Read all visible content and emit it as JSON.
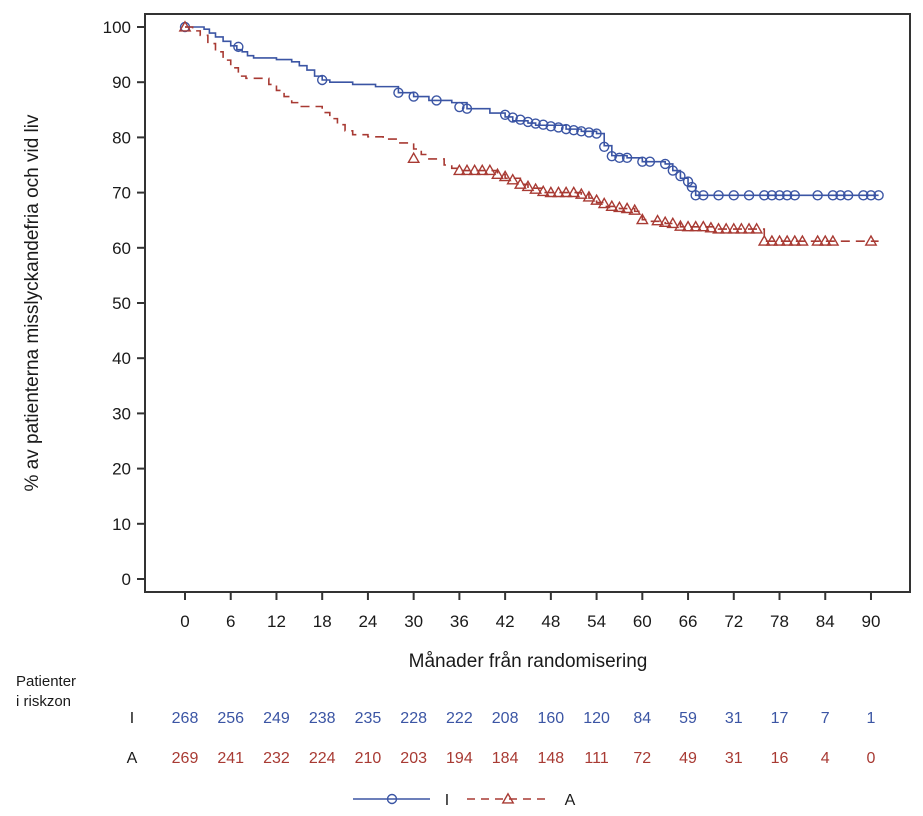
{
  "chart_data": {
    "type": "line",
    "subtype": "kaplan-meier step",
    "title": "",
    "xlabel": "Månader från randomisering",
    "ylabel": "% av patienterna misslyckandefria och vid liv",
    "xlim": [
      -6,
      96
    ],
    "ylim": [
      -2,
      102
    ],
    "x_ticks": [
      0,
      6,
      12,
      18,
      24,
      30,
      36,
      42,
      48,
      54,
      60,
      66,
      72,
      78,
      84,
      90
    ],
    "y_ticks": [
      0,
      10,
      20,
      30,
      40,
      50,
      60,
      70,
      80,
      90,
      100
    ],
    "grid": false,
    "legend_position": "bottom",
    "series": [
      {
        "name": "I",
        "color": "#3b55a4",
        "line_style": "solid",
        "marker": "circle",
        "steps": [
          [
            0,
            100
          ],
          [
            2.5,
            99.6
          ],
          [
            3.2,
            98.9
          ],
          [
            4,
            98.2
          ],
          [
            5,
            97.4
          ],
          [
            6,
            96.6
          ],
          [
            6.8,
            95.9
          ],
          [
            7.5,
            95.5
          ],
          [
            8.2,
            94.8
          ],
          [
            9,
            94.4
          ],
          [
            10.5,
            94.4
          ],
          [
            12,
            94.1
          ],
          [
            14,
            93.7
          ],
          [
            15,
            93.0
          ],
          [
            16,
            92.2
          ],
          [
            17,
            91.1
          ],
          [
            18,
            90.4
          ],
          [
            19,
            90.0
          ],
          [
            22,
            89.6
          ],
          [
            25,
            89.2
          ],
          [
            28,
            88.1
          ],
          [
            30,
            87.4
          ],
          [
            32,
            86.7
          ],
          [
            35,
            86.3
          ],
          [
            37,
            85.2
          ],
          [
            40,
            84.4
          ],
          [
            42,
            83.7
          ],
          [
            43,
            83.0
          ],
          [
            45,
            82.6
          ],
          [
            46,
            82.2
          ],
          [
            50,
            81.5
          ],
          [
            52,
            81.1
          ],
          [
            54,
            80.7
          ],
          [
            55,
            78.5
          ],
          [
            56,
            76.7
          ],
          [
            58,
            76.3
          ],
          [
            60,
            75.6
          ],
          [
            63,
            75.2
          ],
          [
            64,
            74.0
          ],
          [
            65,
            72.6
          ],
          [
            66,
            71.1
          ],
          [
            67,
            69.5
          ],
          [
            91,
            69.5
          ]
        ],
        "censored": [
          [
            0,
            100
          ],
          [
            7,
            96.4
          ],
          [
            18,
            90.4
          ],
          [
            28,
            88.1
          ],
          [
            30,
            87.4
          ],
          [
            33,
            86.7
          ],
          [
            36,
            85.5
          ],
          [
            37,
            85.2
          ],
          [
            42,
            84.1
          ],
          [
            43,
            83.6
          ],
          [
            44,
            83.2
          ],
          [
            45,
            82.8
          ],
          [
            46,
            82.5
          ],
          [
            47,
            82.3
          ],
          [
            48,
            82.0
          ],
          [
            49,
            81.8
          ],
          [
            50,
            81.5
          ],
          [
            51,
            81.3
          ],
          [
            52,
            81.1
          ],
          [
            53,
            80.9
          ],
          [
            54,
            80.7
          ],
          [
            55,
            78.3
          ],
          [
            56,
            76.6
          ],
          [
            57,
            76.3
          ],
          [
            58,
            76.3
          ],
          [
            60,
            75.6
          ],
          [
            61,
            75.6
          ],
          [
            63,
            75.2
          ],
          [
            64,
            74.0
          ],
          [
            65,
            73.0
          ],
          [
            66,
            72.0
          ],
          [
            66.5,
            71.0
          ],
          [
            67,
            69.5
          ],
          [
            68,
            69.5
          ],
          [
            70,
            69.5
          ],
          [
            72,
            69.5
          ],
          [
            74,
            69.5
          ],
          [
            76,
            69.5
          ],
          [
            77,
            69.5
          ],
          [
            78,
            69.5
          ],
          [
            79,
            69.5
          ],
          [
            80,
            69.5
          ],
          [
            83,
            69.5
          ],
          [
            85,
            69.5
          ],
          [
            86,
            69.5
          ],
          [
            87,
            69.5
          ],
          [
            89,
            69.5
          ],
          [
            90,
            69.5
          ],
          [
            91,
            69.5
          ]
        ]
      },
      {
        "name": "A",
        "color": "#a83a33",
        "line_style": "dashed",
        "marker": "triangle",
        "steps": [
          [
            0,
            100
          ],
          [
            1,
            99.3
          ],
          [
            2,
            98.5
          ],
          [
            3,
            97.0
          ],
          [
            4,
            95.5
          ],
          [
            5,
            94.0
          ],
          [
            6,
            92.6
          ],
          [
            7,
            91.1
          ],
          [
            8,
            90.7
          ],
          [
            10,
            90.7
          ],
          [
            11,
            89.6
          ],
          [
            12,
            88.5
          ],
          [
            13,
            87.4
          ],
          [
            14,
            86.3
          ],
          [
            15,
            85.6
          ],
          [
            17,
            85.6
          ],
          [
            18,
            84.5
          ],
          [
            19,
            83.4
          ],
          [
            20,
            82.3
          ],
          [
            21,
            81.2
          ],
          [
            22,
            80.5
          ],
          [
            24,
            80.1
          ],
          [
            26,
            79.7
          ],
          [
            28,
            79.0
          ],
          [
            30,
            77.9
          ],
          [
            31,
            76.9
          ],
          [
            32,
            76.1
          ],
          [
            34,
            75.0
          ],
          [
            35,
            74.4
          ],
          [
            36,
            74.0
          ],
          [
            40,
            74.0
          ],
          [
            41,
            73.3
          ],
          [
            42,
            72.6
          ],
          [
            44,
            71.5
          ],
          [
            45,
            70.8
          ],
          [
            47,
            70.0
          ],
          [
            52,
            69.7
          ],
          [
            53,
            69.0
          ],
          [
            54,
            68.2
          ],
          [
            55,
            67.5
          ],
          [
            57,
            67.1
          ],
          [
            59,
            66.6
          ],
          [
            60,
            65.1
          ],
          [
            61,
            64.8
          ],
          [
            63,
            64.4
          ],
          [
            65,
            63.8
          ],
          [
            67,
            63.8
          ],
          [
            70,
            63.4
          ],
          [
            75,
            63.4
          ],
          [
            76,
            61.2
          ],
          [
            91,
            61.2
          ]
        ],
        "censored": [
          [
            0,
            100
          ],
          [
            30,
            76.2
          ],
          [
            36,
            74.0
          ],
          [
            37,
            74.0
          ],
          [
            38,
            74.0
          ],
          [
            39,
            74.0
          ],
          [
            40,
            74.0
          ],
          [
            41,
            73.3
          ],
          [
            42,
            72.9
          ],
          [
            43,
            72.3
          ],
          [
            44,
            71.5
          ],
          [
            45,
            71.1
          ],
          [
            46,
            70.6
          ],
          [
            47,
            70.2
          ],
          [
            48,
            70.0
          ],
          [
            49,
            70.0
          ],
          [
            50,
            70.0
          ],
          [
            51,
            70.0
          ],
          [
            52,
            69.7
          ],
          [
            53,
            69.2
          ],
          [
            54,
            68.6
          ],
          [
            55,
            68.0
          ],
          [
            56,
            67.5
          ],
          [
            57,
            67.3
          ],
          [
            58,
            67.1
          ],
          [
            59,
            66.8
          ],
          [
            60,
            65.1
          ],
          [
            62,
            64.9
          ],
          [
            63,
            64.6
          ],
          [
            64,
            64.4
          ],
          [
            65,
            63.9
          ],
          [
            66,
            63.8
          ],
          [
            67,
            63.8
          ],
          [
            68,
            63.8
          ],
          [
            69,
            63.6
          ],
          [
            70,
            63.4
          ],
          [
            71,
            63.4
          ],
          [
            72,
            63.4
          ],
          [
            73,
            63.4
          ],
          [
            74,
            63.4
          ],
          [
            75,
            63.4
          ],
          [
            76,
            61.2
          ],
          [
            77,
            61.2
          ],
          [
            78,
            61.2
          ],
          [
            79,
            61.2
          ],
          [
            80,
            61.2
          ],
          [
            81,
            61.2
          ],
          [
            83,
            61.2
          ],
          [
            84,
            61.2
          ],
          [
            85,
            61.2
          ],
          [
            90,
            61.2
          ]
        ]
      }
    ],
    "risk_table": {
      "header": [
        "Patienter",
        "i riskzon"
      ],
      "rows": [
        {
          "group": "I",
          "color": "#3b55a4",
          "values": [
            268,
            256,
            249,
            238,
            235,
            228,
            222,
            208,
            160,
            120,
            84,
            59,
            31,
            17,
            7,
            1
          ]
        },
        {
          "group": "A",
          "color": "#a83a33",
          "values": [
            269,
            241,
            232,
            224,
            210,
            203,
            194,
            184,
            148,
            111,
            72,
            49,
            31,
            16,
            4,
            0
          ]
        }
      ]
    },
    "legend": [
      {
        "label": "I",
        "color": "#3b55a4",
        "line_style": "solid",
        "marker": "circle"
      },
      {
        "label": "A",
        "color": "#a83a33",
        "line_style": "dashed",
        "marker": "triangle"
      }
    ]
  }
}
